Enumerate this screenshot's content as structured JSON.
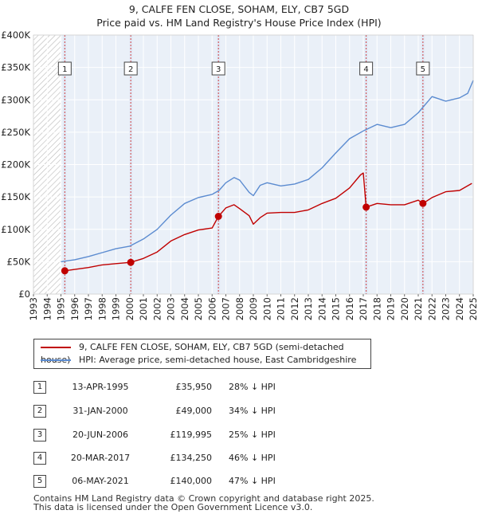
{
  "title_line1": "9, CALFE FEN CLOSE, SOHAM, ELY, CB7 5GD",
  "title_line2": "Price paid vs. HM Land Registry's House Price Index (HPI)",
  "colors": {
    "property": "#c00000",
    "hpi": "#5b8bd0",
    "shade": "#dde7f5",
    "grid": "#ffffff"
  },
  "chart_data": {
    "type": "line",
    "title": "9, CALFE FEN CLOSE, SOHAM, ELY, CB7 5GD — Price paid vs. HM Land Registry's House Price Index (HPI)",
    "xlabel": "",
    "ylabel": "",
    "xlim": [
      1993,
      2025
    ],
    "ylim": [
      0,
      400000
    ],
    "x_ticks": [
      "1993",
      "1994",
      "1995",
      "1996",
      "1997",
      "1998",
      "1999",
      "2000",
      "2001",
      "2002",
      "2003",
      "2004",
      "2005",
      "2006",
      "2007",
      "2008",
      "2009",
      "2010",
      "2011",
      "2012",
      "2013",
      "2014",
      "2015",
      "2016",
      "2017",
      "2018",
      "2019",
      "2020",
      "2021",
      "2022",
      "2023",
      "2024",
      "2025"
    ],
    "y_ticks": [
      {
        "value": 0,
        "label": "£0"
      },
      {
        "value": 50000,
        "label": "£50K"
      },
      {
        "value": 100000,
        "label": "£100K"
      },
      {
        "value": 150000,
        "label": "£150K"
      },
      {
        "value": 200000,
        "label": "£200K"
      },
      {
        "value": 250000,
        "label": "£250K"
      },
      {
        "value": 300000,
        "label": "£300K"
      },
      {
        "value": 350000,
        "label": "£350K"
      },
      {
        "value": 400000,
        "label": "£400K"
      }
    ],
    "hatched_before": 1995.0,
    "series": [
      {
        "name": "9, CALFE FEN CLOSE, SOHAM, ELY, CB7 5GD (semi-detached house)",
        "x": [
          1995.28,
          1996,
          1997,
          1998,
          1999,
          2000.08,
          2001,
          2002,
          2003,
          2004,
          2005,
          2006,
          2006.46,
          2007,
          2007.6,
          2008,
          2008.7,
          2009,
          2009.5,
          2010,
          2011,
          2012,
          2013,
          2014,
          2015,
          2016,
          2016.8,
          2017.0,
          2017.21,
          2018,
          2019,
          2020,
          2021,
          2021.34,
          2022,
          2023,
          2024,
          2024.9
        ],
        "values": [
          35950,
          38000,
          41000,
          45000,
          47000,
          49000,
          55000,
          65000,
          82000,
          92000,
          99000,
          102000,
          119995,
          133000,
          138000,
          132000,
          121000,
          108000,
          118000,
          125000,
          126000,
          126000,
          130000,
          140000,
          148000,
          164000,
          184000,
          187000,
          134250,
          140000,
          138000,
          138000,
          145000,
          140000,
          149000,
          158000,
          160000,
          171000
        ]
      },
      {
        "name": "HPI: Average price, semi-detached house, East Cambridgeshire",
        "x": [
          1995,
          1996,
          1997,
          1998,
          1999,
          2000,
          2001,
          2002,
          2003,
          2004,
          2005,
          2006,
          2006.5,
          2007,
          2007.6,
          2008,
          2008.7,
          2009,
          2009.5,
          2010,
          2011,
          2012,
          2013,
          2014,
          2015,
          2016,
          2017,
          2018,
          2019,
          2020,
          2021,
          2022,
          2023,
          2024,
          2024.6,
          2025
        ],
        "values": [
          50000,
          53000,
          58000,
          64000,
          70000,
          74000,
          85000,
          100000,
          122000,
          140000,
          149000,
          154000,
          160000,
          172000,
          180000,
          176000,
          157000,
          152000,
          168000,
          172000,
          167000,
          170000,
          177000,
          195000,
          218000,
          240000,
          252000,
          262000,
          257000,
          262000,
          280000,
          305000,
          298000,
          303000,
          310000,
          330000
        ]
      }
    ],
    "sales": [
      {
        "n": "1",
        "date": "13-APR-1995",
        "x": 1995.28,
        "price": 35950,
        "price_label": "£35,950",
        "hpi_diff": "28% ↓ HPI"
      },
      {
        "n": "2",
        "date": "31-JAN-2000",
        "x": 2000.08,
        "price": 49000,
        "price_label": "£49,000",
        "hpi_diff": "34% ↓ HPI"
      },
      {
        "n": "3",
        "date": "20-JUN-2006",
        "x": 2006.46,
        "price": 119995,
        "price_label": "£119,995",
        "hpi_diff": "25% ↓ HPI"
      },
      {
        "n": "4",
        "date": "20-MAR-2017",
        "x": 2017.21,
        "price": 134250,
        "price_label": "£134,250",
        "hpi_diff": "46% ↓ HPI"
      },
      {
        "n": "5",
        "date": "06-MAY-2021",
        "x": 2021.34,
        "price": 140000,
        "price_label": "£140,000",
        "hpi_diff": "47% ↓ HPI"
      }
    ]
  },
  "legend": {
    "property_label": "9, CALFE FEN CLOSE, SOHAM, ELY, CB7 5GD (semi-detached house)",
    "hpi_label": "HPI: Average price, semi-detached house, East Cambridgeshire"
  },
  "footer": {
    "line1": "Contains HM Land Registry data © Crown copyright and database right 2025.",
    "line2": "This data is licensed under the Open Government Licence v3.0."
  }
}
